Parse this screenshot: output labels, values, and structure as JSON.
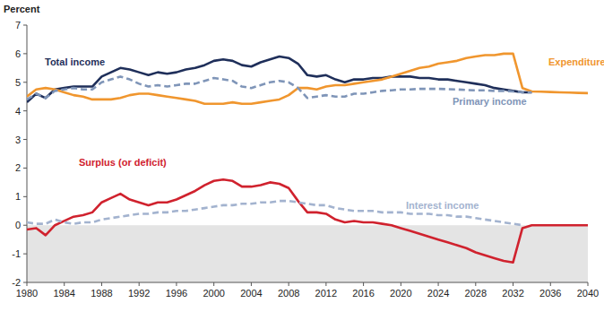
{
  "chart_data": {
    "type": "line",
    "y_label": "Percent",
    "x": [
      1980,
      1981,
      1982,
      1983,
      1984,
      1985,
      1986,
      1987,
      1988,
      1989,
      1990,
      1991,
      1992,
      1993,
      1994,
      1995,
      1996,
      1997,
      1998,
      1999,
      2000,
      2001,
      2002,
      2003,
      2004,
      2005,
      2006,
      2007,
      2008,
      2009,
      2010,
      2011,
      2012,
      2013,
      2014,
      2015,
      2016,
      2017,
      2018,
      2019,
      2020,
      2021,
      2022,
      2023,
      2024,
      2025,
      2026,
      2027,
      2028,
      2029,
      2030,
      2031,
      2032,
      2033,
      2034,
      2035,
      2036,
      2037,
      2038,
      2039,
      2040
    ],
    "xlim": [
      1980,
      2040
    ],
    "xticks": [
      1980,
      1984,
      1988,
      1992,
      1996,
      2000,
      2004,
      2008,
      2012,
      2016,
      2020,
      2024,
      2028,
      2032,
      2036,
      2040
    ],
    "ylim": [
      -2,
      7
    ],
    "yticks": [
      -2,
      -1,
      0,
      1,
      2,
      3,
      4,
      5,
      6,
      7
    ],
    "grid": false,
    "series": [
      {
        "name": "Total income",
        "color": "#1f2f5a",
        "line_style": "solid",
        "values": [
          4.3,
          4.6,
          4.45,
          4.75,
          4.8,
          4.85,
          4.85,
          4.85,
          5.2,
          5.35,
          5.5,
          5.45,
          5.35,
          5.25,
          5.35,
          5.3,
          5.35,
          5.45,
          5.5,
          5.6,
          5.75,
          5.8,
          5.75,
          5.6,
          5.55,
          5.7,
          5.8,
          5.9,
          5.85,
          5.65,
          5.25,
          5.2,
          5.25,
          5.1,
          5.0,
          5.1,
          5.1,
          5.15,
          5.15,
          5.2,
          5.2,
          5.2,
          5.15,
          5.15,
          5.1,
          5.1,
          5.05,
          5.0,
          4.95,
          4.9,
          4.8,
          4.75,
          4.7,
          4.65,
          4.65,
          null,
          null,
          null,
          null,
          null,
          null
        ]
      },
      {
        "name": "Expenditures",
        "color": "#f0962e",
        "line_style": "solid",
        "values": [
          4.5,
          4.75,
          4.8,
          4.75,
          4.65,
          4.55,
          4.5,
          4.4,
          4.4,
          4.4,
          4.45,
          4.55,
          4.6,
          4.6,
          4.55,
          4.5,
          4.45,
          4.4,
          4.35,
          4.25,
          4.25,
          4.25,
          4.3,
          4.25,
          4.25,
          4.3,
          4.35,
          4.4,
          4.55,
          4.8,
          4.8,
          4.75,
          4.85,
          4.9,
          4.9,
          4.95,
          5.0,
          5.05,
          5.1,
          5.2,
          5.3,
          5.4,
          5.5,
          5.55,
          5.65,
          5.7,
          5.75,
          5.85,
          5.9,
          5.95,
          5.95,
          6.0,
          6.0,
          4.8,
          4.68,
          4.67,
          4.66,
          4.65,
          4.64,
          4.63,
          4.62
        ]
      },
      {
        "name": "Primary income",
        "color": "#7f95b8",
        "line_style": "dashed",
        "values": [
          4.4,
          4.6,
          4.45,
          4.7,
          4.75,
          4.8,
          4.75,
          4.75,
          5.0,
          5.1,
          5.2,
          5.1,
          4.95,
          4.85,
          4.9,
          4.85,
          4.9,
          4.95,
          4.95,
          5.05,
          5.15,
          5.1,
          5.05,
          4.85,
          4.8,
          4.9,
          5.0,
          5.05,
          5.0,
          4.8,
          4.45,
          4.5,
          4.55,
          4.5,
          4.5,
          4.6,
          4.6,
          4.65,
          4.7,
          4.72,
          4.75,
          4.75,
          4.77,
          4.77,
          4.77,
          4.76,
          4.75,
          4.73,
          4.72,
          4.72,
          4.7,
          4.7,
          4.68,
          4.65,
          4.65,
          null,
          null,
          null,
          null,
          null,
          null
        ]
      },
      {
        "name": "Surplus (or deficit)",
        "color": "#d0222e",
        "line_style": "solid",
        "values": [
          -0.15,
          -0.1,
          -0.35,
          0.0,
          0.15,
          0.3,
          0.35,
          0.45,
          0.8,
          0.95,
          1.1,
          0.9,
          0.8,
          0.7,
          0.8,
          0.8,
          0.9,
          1.05,
          1.2,
          1.4,
          1.55,
          1.6,
          1.55,
          1.35,
          1.35,
          1.4,
          1.5,
          1.45,
          1.3,
          0.85,
          0.45,
          0.45,
          0.4,
          0.2,
          0.1,
          0.15,
          0.1,
          0.1,
          0.05,
          0.0,
          -0.1,
          -0.2,
          -0.3,
          -0.4,
          -0.5,
          -0.6,
          -0.7,
          -0.8,
          -0.95,
          -1.05,
          -1.15,
          -1.25,
          -1.3,
          -0.1,
          0.0,
          0.0,
          0.0,
          0.0,
          0.0,
          0.0,
          0.0
        ]
      },
      {
        "name": "Interest income",
        "color": "#a3b3cf",
        "line_style": "dashed",
        "values": [
          0.1,
          0.05,
          0.05,
          0.2,
          0.1,
          0.05,
          0.1,
          0.1,
          0.2,
          0.25,
          0.3,
          0.35,
          0.4,
          0.4,
          0.45,
          0.45,
          0.5,
          0.5,
          0.55,
          0.6,
          0.65,
          0.7,
          0.7,
          0.75,
          0.75,
          0.8,
          0.8,
          0.85,
          0.85,
          0.8,
          0.75,
          0.7,
          0.7,
          0.6,
          0.55,
          0.5,
          0.5,
          0.5,
          0.45,
          0.45,
          0.45,
          0.4,
          0.4,
          0.4,
          0.35,
          0.35,
          0.3,
          0.3,
          0.25,
          0.2,
          0.15,
          0.1,
          0.05,
          0.0,
          null,
          null,
          null,
          null,
          null,
          null,
          null
        ]
      }
    ]
  }
}
